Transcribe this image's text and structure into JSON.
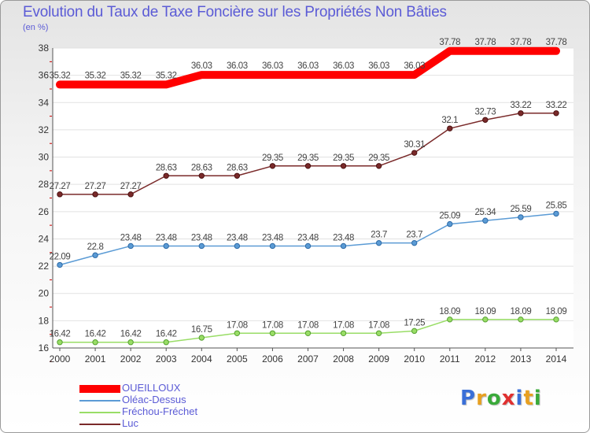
{
  "chart_data": {
    "type": "line",
    "title": "Evolution du Taux de Taxe Foncière sur les Propriétés Non Bâties",
    "unit": "(en %)",
    "x": [
      "2000",
      "2001",
      "2002",
      "2003",
      "2004",
      "2005",
      "2006",
      "2007",
      "2008",
      "2009",
      "2010",
      "2011",
      "2012",
      "2013",
      "2014"
    ],
    "ylim": [
      16,
      38
    ],
    "yticks": [
      16,
      18,
      20,
      22,
      24,
      26,
      28,
      30,
      32,
      34,
      36,
      38
    ],
    "grid": "horizontal",
    "legend_position": "bottom-left",
    "series": [
      {
        "name": "OUEILLOUX",
        "color": "#ff0000",
        "values": [
          35.32,
          35.32,
          35.32,
          35.32,
          36.03,
          36.03,
          36.03,
          36.03,
          36.03,
          36.03,
          36.03,
          37.78,
          37.78,
          37.78,
          37.78
        ],
        "labels": [
          "35.32",
          "35.32",
          "35.32",
          "35.32",
          "36.03",
          "36.03",
          "36.03",
          "36.03",
          "36.03",
          "36.03",
          "36.03",
          "37.78",
          "37.78",
          "37.78",
          "37.78"
        ]
      },
      {
        "name": "Oléac-Dessus",
        "color": "#5b9bd5",
        "values": [
          22.09,
          22.8,
          23.48,
          23.48,
          23.48,
          23.48,
          23.48,
          23.48,
          23.48,
          23.7,
          23.7,
          25.09,
          25.34,
          25.59,
          25.85
        ],
        "labels": [
          "22.09",
          "22.8",
          "23.48",
          "23.48",
          "23.48",
          "23.48",
          "23.48",
          "23.48",
          "23.48",
          "23.7",
          "23.7",
          "25.09",
          "25.34",
          "25.59",
          "25.85"
        ]
      },
      {
        "name": "Fréchou-Fréchet",
        "color": "#99dd66",
        "values": [
          16.42,
          16.42,
          16.42,
          16.42,
          16.75,
          17.08,
          17.08,
          17.08,
          17.08,
          17.08,
          17.25,
          18.09,
          18.09,
          18.09,
          18.09
        ],
        "labels": [
          "16.42",
          "16.42",
          "16.42",
          "16.42",
          "16.75",
          "17.08",
          "17.08",
          "17.08",
          "17.08",
          "17.08",
          "17.25",
          "18.09",
          "18.09",
          "18.09",
          "18.09"
        ]
      },
      {
        "name": "Luc",
        "color": "#7a2a2a",
        "values": [
          27.27,
          27.27,
          27.27,
          28.63,
          28.63,
          28.63,
          29.35,
          29.35,
          29.35,
          29.35,
          30.31,
          32.1,
          32.73,
          33.22,
          33.22
        ],
        "labels": [
          "27.27",
          "27.27",
          "27.27",
          "28.63",
          "28.63",
          "28.63",
          "29.35",
          "29.35",
          "29.35",
          "29.35",
          "30.31",
          "32.1",
          "32.73",
          "33.22",
          "33.22"
        ]
      }
    ]
  },
  "logo": {
    "letters": [
      "P",
      "r",
      "o",
      "x",
      "i",
      "t",
      "i"
    ],
    "colors": [
      "#3a6fd8",
      "#e8a020",
      "#3aaa3a",
      "#e03030",
      "#3a6fd8",
      "#e8a020",
      "#3aaa3a"
    ]
  }
}
